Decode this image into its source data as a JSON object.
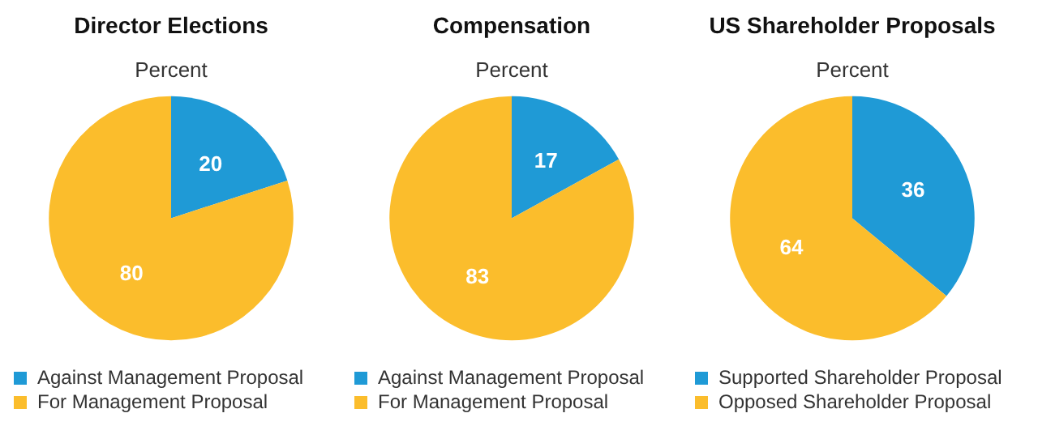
{
  "chart_data": [
    {
      "type": "pie",
      "title": "Director Elections",
      "subtitle": "Percent",
      "categories": [
        "Against Management Proposal",
        "For Management Proposal"
      ],
      "values": [
        20,
        80
      ],
      "colors": [
        "#1f9ad6",
        "#fbbd2c"
      ],
      "data_labels": true,
      "legend": "bottom"
    },
    {
      "type": "pie",
      "title": "Compensation",
      "subtitle": "Percent",
      "categories": [
        "Against Management Proposal",
        "For Management Proposal"
      ],
      "values": [
        17,
        83
      ],
      "colors": [
        "#1f9ad6",
        "#fbbd2c"
      ],
      "data_labels": true,
      "legend": "bottom"
    },
    {
      "type": "pie",
      "title": "US Shareholder Proposals",
      "subtitle": "Percent",
      "categories": [
        "Supported Shareholder Proposal",
        "Opposed Shareholder Proposal"
      ],
      "values": [
        36,
        64
      ],
      "colors": [
        "#1f9ad6",
        "#fbbd2c"
      ],
      "data_labels": true,
      "legend": "bottom"
    }
  ]
}
